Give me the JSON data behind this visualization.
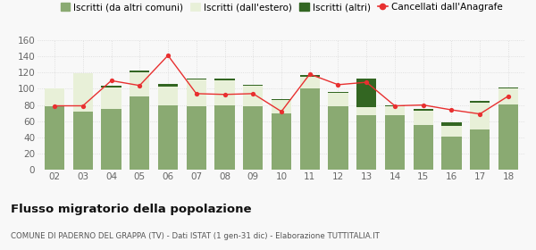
{
  "years": [
    "02",
    "03",
    "04",
    "05",
    "06",
    "07",
    "08",
    "09",
    "10",
    "11",
    "12",
    "13",
    "14",
    "15",
    "16",
    "17",
    "18"
  ],
  "iscritti_altri_comuni": [
    78,
    72,
    75,
    91,
    80,
    78,
    80,
    78,
    70,
    100,
    78,
    67,
    68,
    55,
    41,
    50,
    81
  ],
  "iscritti_estero": [
    22,
    47,
    27,
    29,
    23,
    33,
    30,
    26,
    16,
    15,
    17,
    10,
    10,
    18,
    13,
    33,
    19
  ],
  "iscritti_altri": [
    0,
    0,
    2,
    2,
    3,
    2,
    2,
    1,
    1,
    2,
    1,
    35,
    2,
    2,
    5,
    2,
    2
  ],
  "cancellati": [
    79,
    79,
    110,
    104,
    141,
    94,
    93,
    94,
    72,
    118,
    105,
    108,
    79,
    80,
    74,
    69,
    91
  ],
  "color_altri_comuni": "#8aaa72",
  "color_estero": "#e8f0d8",
  "color_altri": "#336622",
  "color_cancellati": "#e83030",
  "ylim": [
    0,
    160
  ],
  "yticks": [
    0,
    20,
    40,
    60,
    80,
    100,
    120,
    140,
    160
  ],
  "legend_labels": [
    "Iscritti (da altri comuni)",
    "Iscritti (dall'estero)",
    "Iscritti (altri)",
    "Cancellati dall'Anagrafe"
  ],
  "title": "Flusso migratorio della popolazione",
  "subtitle": "COMUNE DI PADERNO DEL GRAPPA (TV) - Dati ISTAT (1 gen-31 dic) - Elaborazione TUTTITALIA.IT",
  "bg_color": "#f8f8f8",
  "grid_color": "#d8d8d8"
}
